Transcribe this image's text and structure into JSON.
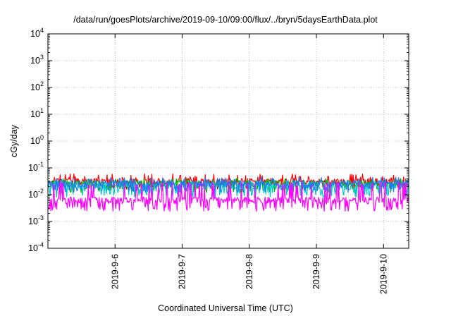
{
  "chart_data": {
    "type": "line",
    "title": "/data/run/goesPlots/archive/2019-09-10/09:00/flux/../bryn/5daysEarthData.plot",
    "xlabel": "Coordinated Universal Time (UTC)",
    "ylabel": "cGy/day",
    "y_scale": "log",
    "ylim": [
      0.0001,
      10000
    ],
    "y_ticks": [
      {
        "exp": "-4",
        "value": 0.0001
      },
      {
        "exp": "-3",
        "value": 0.001
      },
      {
        "exp": "-2",
        "value": 0.01
      },
      {
        "exp": "-1",
        "value": 0.1
      },
      {
        "exp": "0",
        "value": 1
      },
      {
        "exp": "1",
        "value": 10
      },
      {
        "exp": "2",
        "value": 100
      },
      {
        "exp": "3",
        "value": 1000
      },
      {
        "exp": "4",
        "value": 10000
      }
    ],
    "y_tick_base": "10",
    "xlim": [
      "2019-09-05 00:00",
      "2019-09-10 09:00"
    ],
    "x_ticks": [
      "2019-9-6",
      "2019-9-7",
      "2019-9-8",
      "2019-9-9",
      "2019-9-10"
    ],
    "grid": true,
    "series": [
      {
        "color": "#ff0000",
        "level": 0.03,
        "spread_low": 0.02,
        "spread_high": 0.06
      },
      {
        "color": "#00b400",
        "level": 0.025,
        "spread_low": 0.015,
        "spread_high": 0.04
      },
      {
        "color": "#00c8c8",
        "level": 0.02,
        "spread_low": 0.01,
        "spread_high": 0.035
      },
      {
        "color": "#1e78ff",
        "level": 0.025,
        "spread_low": 0.015,
        "spread_high": 0.045
      },
      {
        "color": "#ff00ff",
        "level": 0.006,
        "spread_low": 0.003,
        "spread_high": 0.03
      }
    ]
  }
}
